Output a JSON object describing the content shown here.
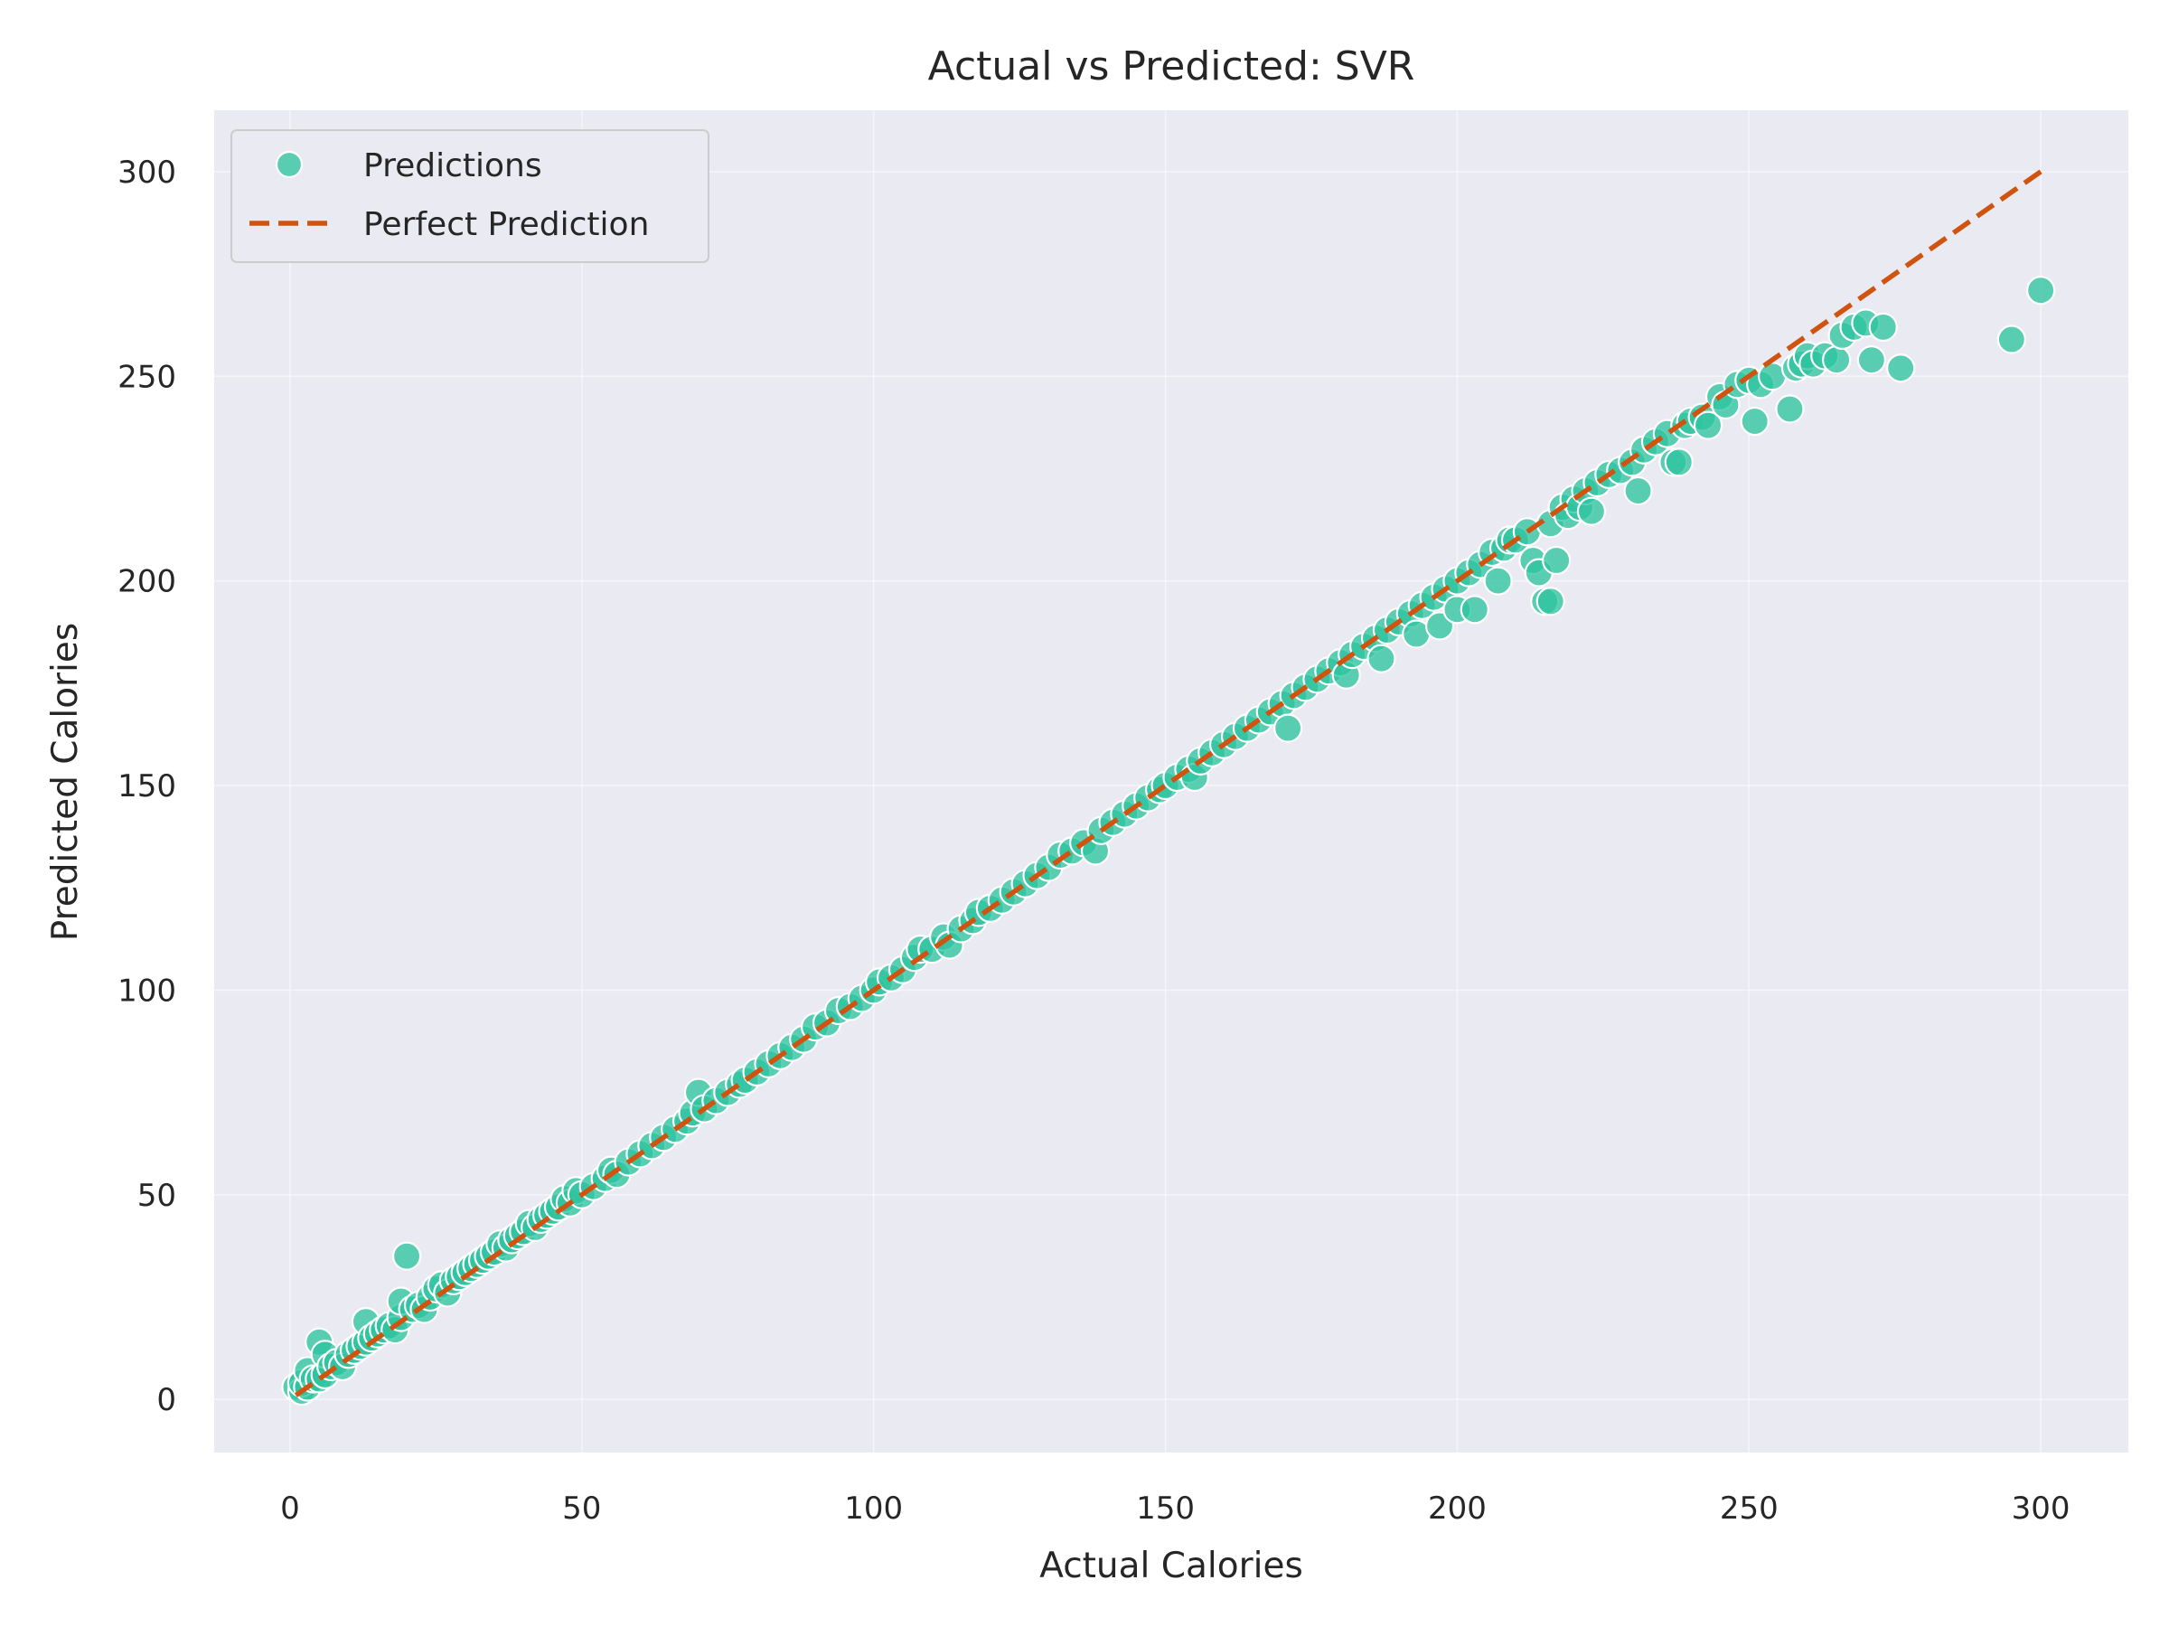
{
  "chart_data": {
    "type": "scatter",
    "title": "Actual vs Predicted: SVR",
    "xlabel": "Actual Calories",
    "ylabel": "Predicted Calories",
    "xlim": [
      -13,
      315
    ],
    "ylim": [
      -13,
      315
    ],
    "xticks": [
      0,
      50,
      100,
      150,
      200,
      250,
      300
    ],
    "yticks": [
      0,
      50,
      100,
      150,
      200,
      250,
      300
    ],
    "grid": true,
    "legend_position": "top-left",
    "colors": {
      "background": "#eaeaf2",
      "grid": "#ffffff",
      "points": "#2ec4a0",
      "points_edge": "#ffffff",
      "perfect_line": "#d0540f"
    },
    "series": [
      {
        "name": "Predictions",
        "kind": "scatter",
        "points": [
          [
            1,
            3
          ],
          [
            2,
            2
          ],
          [
            2,
            4
          ],
          [
            3,
            3
          ],
          [
            3,
            7
          ],
          [
            4,
            5
          ],
          [
            5,
            5
          ],
          [
            5,
            14
          ],
          [
            6,
            6
          ],
          [
            6,
            11
          ],
          [
            7,
            8
          ],
          [
            8,
            9
          ],
          [
            9,
            8
          ],
          [
            10,
            11
          ],
          [
            11,
            12
          ],
          [
            12,
            13
          ],
          [
            13,
            14
          ],
          [
            13,
            19
          ],
          [
            14,
            15
          ],
          [
            15,
            16
          ],
          [
            16,
            17
          ],
          [
            17,
            18
          ],
          [
            18,
            17
          ],
          [
            19,
            20
          ],
          [
            19,
            24
          ],
          [
            20,
            35
          ],
          [
            21,
            22
          ],
          [
            22,
            23
          ],
          [
            23,
            22
          ],
          [
            24,
            25
          ],
          [
            25,
            27
          ],
          [
            26,
            28
          ],
          [
            27,
            26
          ],
          [
            28,
            29
          ],
          [
            29,
            30
          ],
          [
            30,
            31
          ],
          [
            31,
            32
          ],
          [
            32,
            33
          ],
          [
            33,
            34
          ],
          [
            34,
            35
          ],
          [
            35,
            36
          ],
          [
            36,
            38
          ],
          [
            37,
            37
          ],
          [
            38,
            39
          ],
          [
            39,
            40
          ],
          [
            40,
            41
          ],
          [
            41,
            43
          ],
          [
            42,
            42
          ],
          [
            43,
            44
          ],
          [
            44,
            45
          ],
          [
            45,
            46
          ],
          [
            46,
            47
          ],
          [
            47,
            49
          ],
          [
            48,
            48
          ],
          [
            49,
            51
          ],
          [
            50,
            50
          ],
          [
            52,
            52
          ],
          [
            54,
            54
          ],
          [
            55,
            56
          ],
          [
            56,
            55
          ],
          [
            58,
            58
          ],
          [
            60,
            60
          ],
          [
            62,
            62
          ],
          [
            64,
            64
          ],
          [
            66,
            66
          ],
          [
            68,
            68
          ],
          [
            69,
            70
          ],
          [
            70,
            75
          ],
          [
            71,
            71
          ],
          [
            73,
            73
          ],
          [
            75,
            75
          ],
          [
            77,
            77
          ],
          [
            78,
            78
          ],
          [
            80,
            80
          ],
          [
            82,
            82
          ],
          [
            84,
            84
          ],
          [
            86,
            86
          ],
          [
            88,
            88
          ],
          [
            90,
            91
          ],
          [
            92,
            92
          ],
          [
            94,
            95
          ],
          [
            96,
            96
          ],
          [
            98,
            98
          ],
          [
            100,
            100
          ],
          [
            101,
            102
          ],
          [
            103,
            103
          ],
          [
            105,
            105
          ],
          [
            107,
            108
          ],
          [
            108,
            110
          ],
          [
            110,
            110
          ],
          [
            112,
            113
          ],
          [
            113,
            111
          ],
          [
            115,
            115
          ],
          [
            117,
            117
          ],
          [
            118,
            119
          ],
          [
            120,
            120
          ],
          [
            122,
            122
          ],
          [
            124,
            124
          ],
          [
            126,
            126
          ],
          [
            128,
            128
          ],
          [
            130,
            130
          ],
          [
            132,
            133
          ],
          [
            134,
            134
          ],
          [
            136,
            136
          ],
          [
            138,
            134
          ],
          [
            139,
            139
          ],
          [
            141,
            141
          ],
          [
            143,
            143
          ],
          [
            145,
            145
          ],
          [
            147,
            147
          ],
          [
            149,
            149
          ],
          [
            150,
            150
          ],
          [
            152,
            152
          ],
          [
            154,
            154
          ],
          [
            155,
            152
          ],
          [
            156,
            156
          ],
          [
            158,
            158
          ],
          [
            160,
            160
          ],
          [
            162,
            162
          ],
          [
            164,
            164
          ],
          [
            166,
            166
          ],
          [
            168,
            168
          ],
          [
            170,
            170
          ],
          [
            171,
            164
          ],
          [
            172,
            172
          ],
          [
            174,
            174
          ],
          [
            176,
            176
          ],
          [
            178,
            178
          ],
          [
            180,
            180
          ],
          [
            181,
            177
          ],
          [
            182,
            182
          ],
          [
            184,
            184
          ],
          [
            186,
            186
          ],
          [
            187,
            181
          ],
          [
            188,
            188
          ],
          [
            190,
            190
          ],
          [
            192,
            192
          ],
          [
            193,
            187
          ],
          [
            194,
            194
          ],
          [
            196,
            196
          ],
          [
            197,
            189
          ],
          [
            198,
            198
          ],
          [
            200,
            200
          ],
          [
            200,
            193
          ],
          [
            202,
            202
          ],
          [
            203,
            193
          ],
          [
            204,
            204
          ],
          [
            206,
            207
          ],
          [
            207,
            200
          ],
          [
            208,
            208
          ],
          [
            209,
            210
          ],
          [
            210,
            210
          ],
          [
            212,
            212
          ],
          [
            213,
            205
          ],
          [
            214,
            202
          ],
          [
            215,
            195
          ],
          [
            216,
            195
          ],
          [
            216,
            214
          ],
          [
            217,
            205
          ],
          [
            218,
            218
          ],
          [
            219,
            216
          ],
          [
            220,
            220
          ],
          [
            221,
            218
          ],
          [
            222,
            222
          ],
          [
            223,
            217
          ],
          [
            224,
            224
          ],
          [
            226,
            226
          ],
          [
            228,
            227
          ],
          [
            230,
            229
          ],
          [
            231,
            222
          ],
          [
            232,
            232
          ],
          [
            234,
            234
          ],
          [
            236,
            236
          ],
          [
            237,
            229
          ],
          [
            238,
            229
          ],
          [
            239,
            238
          ],
          [
            240,
            239
          ],
          [
            242,
            240
          ],
          [
            243,
            238
          ],
          [
            245,
            245
          ],
          [
            246,
            243
          ],
          [
            248,
            248
          ],
          [
            250,
            249
          ],
          [
            251,
            239
          ],
          [
            252,
            248
          ],
          [
            254,
            250
          ],
          [
            257,
            242
          ],
          [
            258,
            252
          ],
          [
            259,
            253
          ],
          [
            260,
            255
          ],
          [
            261,
            253
          ],
          [
            263,
            255
          ],
          [
            265,
            254
          ],
          [
            266,
            260
          ],
          [
            268,
            262
          ],
          [
            270,
            263
          ],
          [
            271,
            254
          ],
          [
            273,
            262
          ],
          [
            276,
            252
          ],
          [
            295,
            259
          ],
          [
            300,
            271
          ]
        ]
      },
      {
        "name": "Perfect Prediction",
        "kind": "line",
        "style": "dashed",
        "x": [
          1,
          300
        ],
        "y": [
          1,
          300
        ]
      }
    ]
  }
}
